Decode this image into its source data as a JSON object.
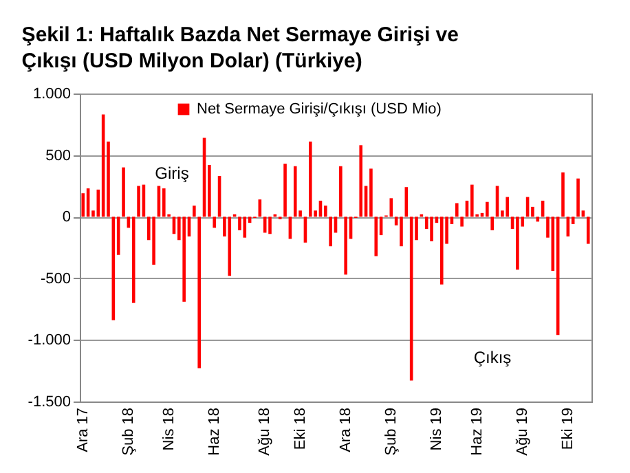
{
  "chart_data": {
    "type": "bar",
    "title": "Şekil 1: Haftalık Bazda Net Sermaye Girişi ve Çıkışı (USD Milyon Dolar) (Türkiye)",
    "categories": [
      "Ara 17",
      null,
      null,
      null,
      null,
      null,
      null,
      null,
      null,
      "Şub 18",
      null,
      null,
      null,
      null,
      null,
      null,
      null,
      "Nis 18",
      null,
      null,
      null,
      null,
      null,
      null,
      null,
      null,
      "Haz 18",
      null,
      null,
      null,
      null,
      null,
      null,
      null,
      null,
      null,
      "Ağu 18",
      null,
      null,
      null,
      null,
      null,
      null,
      "Eki 18",
      null,
      null,
      null,
      null,
      null,
      null,
      null,
      null,
      "Ara 18",
      null,
      null,
      null,
      null,
      null,
      null,
      null,
      null,
      "Şub 19",
      null,
      null,
      null,
      null,
      null,
      null,
      null,
      null,
      "Nis 19",
      null,
      null,
      null,
      null,
      null,
      null,
      null,
      "Haz 19",
      null,
      null,
      null,
      null,
      null,
      null,
      null,
      null,
      "Ağu 19",
      null,
      null,
      null,
      null,
      null,
      null,
      null,
      null,
      "Eki 19",
      null,
      null,
      null,
      null
    ],
    "series": [
      {
        "name": "Net Sermaye Girişi/Çıkışı (USD Mio)",
        "color": "#ff0000",
        "values": [
          190,
          230,
          50,
          220,
          830,
          610,
          -840,
          -310,
          400,
          -90,
          -700,
          250,
          260,
          -190,
          -390,
          250,
          230,
          20,
          -140,
          -190,
          -690,
          -160,
          90,
          -1230,
          640,
          420,
          -90,
          330,
          -160,
          -480,
          20,
          -110,
          -170,
          -50,
          -10,
          140,
          -130,
          -140,
          20,
          -20,
          430,
          -180,
          410,
          50,
          -210,
          610,
          50,
          130,
          90,
          -240,
          -130,
          410,
          -470,
          -180,
          -10,
          580,
          250,
          390,
          -320,
          -150,
          10,
          150,
          -70,
          -240,
          240,
          -1330,
          -190,
          20,
          -100,
          -200,
          -50,
          -550,
          -220,
          -60,
          110,
          -80,
          130,
          260,
          20,
          30,
          120,
          -110,
          250,
          50,
          160,
          -100,
          -430,
          -80,
          160,
          80,
          -40,
          130,
          -170,
          -440,
          -960,
          360,
          -160,
          -60,
          310,
          50,
          -220
        ]
      }
    ],
    "ylim": [
      -1500,
      1000
    ],
    "yticks": [
      {
        "value": 1000,
        "label": "1.000"
      },
      500,
      0,
      -500,
      {
        "value": -1000,
        "label": "-1.000"
      },
      {
        "value": -1500,
        "label": "-1.500"
      }
    ],
    "grid": "y",
    "legend": "top",
    "annotations": [
      "Giriş",
      "Çıkış"
    ]
  }
}
